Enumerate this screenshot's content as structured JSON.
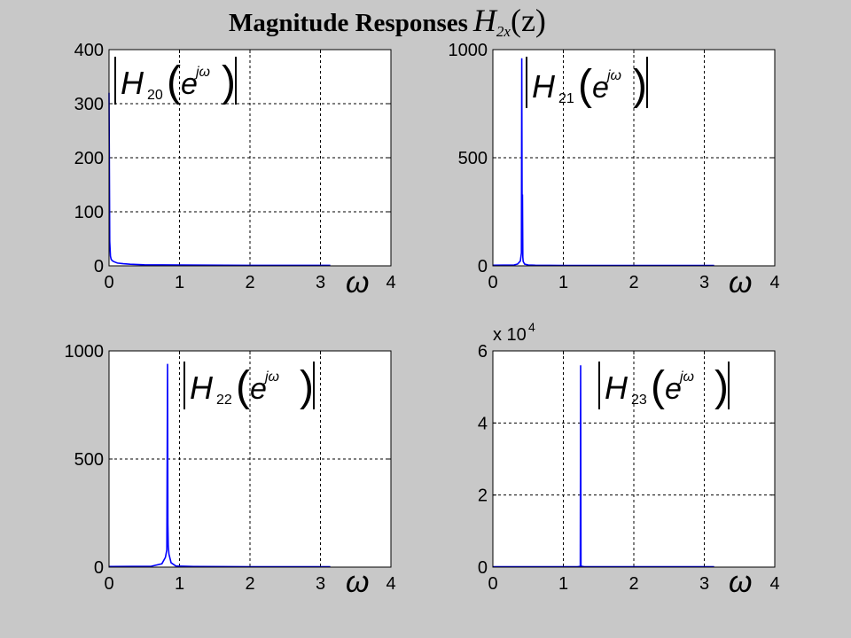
{
  "title": {
    "text": "Magnitude Responses",
    "math_base": "H",
    "math_sub": "2x",
    "math_arg": "(z)"
  },
  "colors": {
    "background": "#c8c8c8",
    "plot_bg": "#ffffff",
    "line": "#0000ff",
    "grid": "#000000"
  },
  "chart_data": [
    {
      "type": "line",
      "annotation": {
        "base": "H",
        "sub": "20",
        "exp": "jω"
      },
      "xlabel": "ω",
      "xlim": [
        0,
        4
      ],
      "ylim": [
        0,
        400
      ],
      "xticks": [
        0,
        1,
        2,
        3,
        4
      ],
      "xtick_labels": [
        "0",
        "1",
        "2",
        "3",
        "4"
      ],
      "yticks": [
        0,
        100,
        200,
        300,
        400
      ],
      "ytick_labels": [
        "0",
        "100",
        "200",
        "300",
        "400"
      ],
      "exponent_label": "",
      "grid": true,
      "series": [
        {
          "x": [
            0,
            0.01,
            0.02,
            0.03,
            0.05,
            0.08,
            0.12,
            0.2,
            0.3,
            0.5,
            1,
            2,
            3.14
          ],
          "y": [
            320,
            45,
            18,
            12,
            9,
            7,
            5,
            4,
            3,
            2,
            1.5,
            1,
            1
          ]
        }
      ]
    },
    {
      "type": "line",
      "annotation": {
        "base": "H",
        "sub": "21",
        "exp": "jω"
      },
      "xlabel": "ω",
      "xlim": [
        0,
        4
      ],
      "ylim": [
        0,
        1000
      ],
      "xticks": [
        0,
        1,
        2,
        3,
        4
      ],
      "xtick_labels": [
        "0",
        "1",
        "2",
        "3",
        "4"
      ],
      "yticks": [
        0,
        500,
        1000
      ],
      "ytick_labels": [
        "0",
        "500",
        "1000"
      ],
      "exponent_label": "",
      "grid": true,
      "series": [
        {
          "x": [
            0,
            0.3,
            0.35,
            0.39,
            0.405,
            0.41,
            0.415,
            0.42,
            0.425,
            0.43,
            0.45,
            0.5,
            0.6,
            1,
            2,
            3.14
          ],
          "y": [
            3,
            4,
            8,
            22,
            60,
            960,
            240,
            330,
            40,
            20,
            8,
            4,
            3,
            2,
            2,
            2
          ]
        }
      ]
    },
    {
      "type": "line",
      "annotation": {
        "base": "H",
        "sub": "22",
        "exp": "jω"
      },
      "xlabel": "ω",
      "xlim": [
        0,
        4
      ],
      "ylim": [
        0,
        1000
      ],
      "xticks": [
        0,
        1,
        2,
        3,
        4
      ],
      "xtick_labels": [
        "0",
        "1",
        "2",
        "3",
        "4"
      ],
      "yticks": [
        0,
        500,
        1000
      ],
      "ytick_labels": [
        "0",
        "500",
        "1000"
      ],
      "exponent_label": "",
      "grid": true,
      "series": [
        {
          "x": [
            0,
            0.6,
            0.75,
            0.8,
            0.82,
            0.83,
            0.835,
            0.84,
            0.85,
            0.88,
            0.95,
            1.2,
            2,
            3.14
          ],
          "y": [
            3,
            4,
            15,
            45,
            80,
            940,
            200,
            100,
            60,
            20,
            5,
            3,
            2,
            2
          ]
        }
      ]
    },
    {
      "type": "line",
      "annotation": {
        "base": "H",
        "sub": "23",
        "exp": "jω"
      },
      "xlabel": "ω",
      "xlim": [
        0,
        4
      ],
      "ylim": [
        0,
        6
      ],
      "xticks": [
        0,
        1,
        2,
        3,
        4
      ],
      "xtick_labels": [
        "0",
        "1",
        "2",
        "3",
        "4"
      ],
      "yticks": [
        0,
        2,
        4,
        6
      ],
      "ytick_labels": [
        "0",
        "2",
        "4",
        "6"
      ],
      "exponent_label": "x 10",
      "exponent_power": "4",
      "grid": true,
      "series": [
        {
          "x": [
            0,
            1.2,
            1.24,
            1.245,
            1.25,
            1.26,
            1.3,
            2,
            3.14
          ],
          "y": [
            0.01,
            0.01,
            0.02,
            5.6,
            0.05,
            0.02,
            0.01,
            0.01,
            0.01
          ]
        }
      ]
    }
  ]
}
